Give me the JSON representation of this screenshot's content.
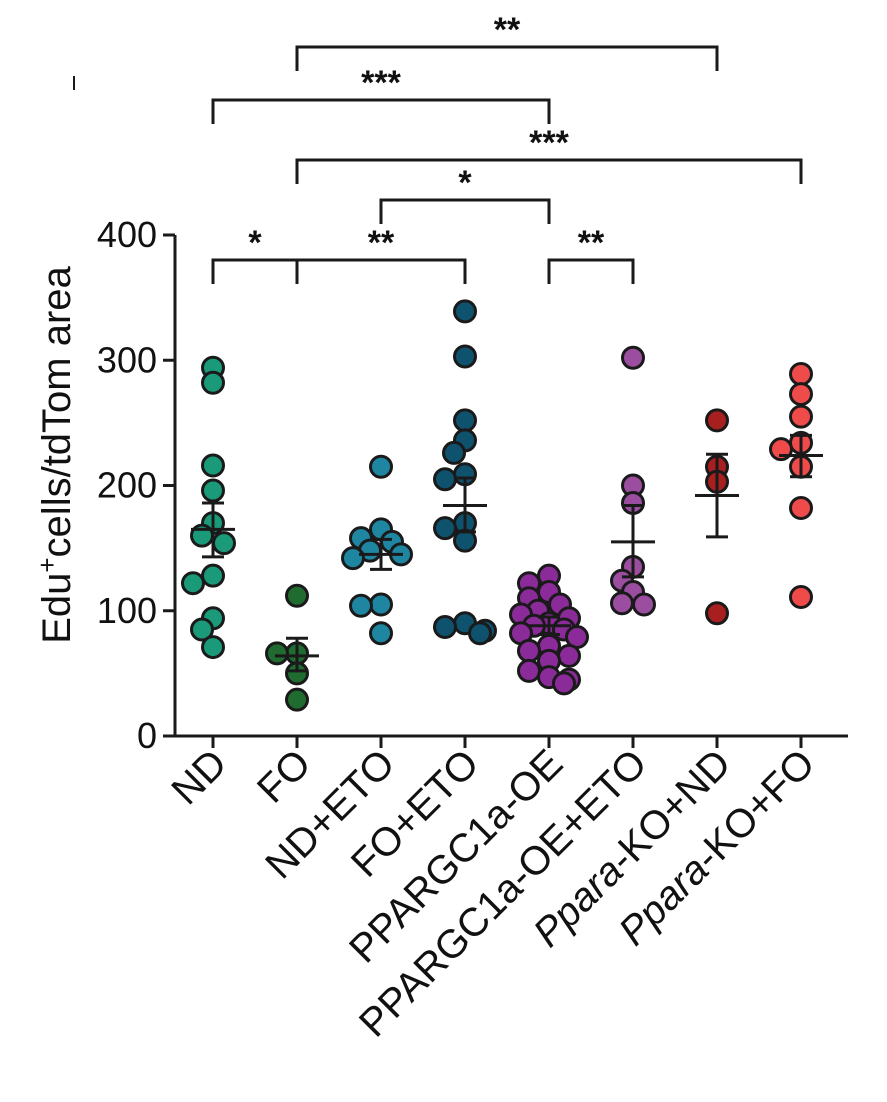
{
  "chart_data": {
    "type": "scatter",
    "ylabel": {
      "prefix": "Edu",
      "sup": "+",
      "suffix": "cells/tdTom area"
    },
    "ylim": [
      0,
      400
    ],
    "yticks": [
      0,
      100,
      200,
      300,
      400
    ],
    "categories": [
      {
        "label": "ND",
        "italic_prefix": "",
        "color": "#1a9a78",
        "mean": 165,
        "sem_low": 143,
        "sem_high": 186,
        "values": [
          294,
          282,
          216,
          196,
          170,
          160,
          154,
          128,
          122,
          94,
          85,
          71
        ]
      },
      {
        "label": "FO",
        "italic_prefix": "",
        "color": "#1f6b30",
        "mean": 64,
        "sem_low": 52,
        "sem_high": 78,
        "values": [
          112,
          66,
          66,
          50,
          29
        ]
      },
      {
        "label": "ND+ETO",
        "italic_prefix": "",
        "color": "#1f86a2",
        "mean": 145,
        "sem_low": 133,
        "sem_high": 157,
        "values": [
          215,
          165,
          158,
          155,
          148,
          145,
          142,
          105,
          104,
          82
        ]
      },
      {
        "label": "FO+ETO",
        "italic_prefix": "",
        "color": "#0f526e",
        "mean": 184,
        "sem_low": 163,
        "sem_high": 206,
        "values": [
          339,
          303,
          252,
          236,
          226,
          209,
          205,
          170,
          166,
          156,
          90,
          87,
          84,
          82
        ]
      },
      {
        "label": "PPARGC1a-OE",
        "italic_prefix": "",
        "color": "#8b2b9a",
        "mean": 88,
        "sem_low": 81,
        "sem_high": 95,
        "values": [
          128,
          122,
          115,
          110,
          105,
          100,
          97,
          94,
          90,
          88,
          85,
          82,
          79,
          72,
          68,
          64,
          60,
          52,
          47,
          45,
          42
        ]
      },
      {
        "label": "PPARGC1a-OE+ETO",
        "italic_prefix": "",
        "color": "#9b4e9f",
        "mean": 155,
        "sem_low": 127,
        "sem_high": 184,
        "values": [
          302,
          200,
          186,
          135,
          124,
          115,
          106,
          105
        ]
      },
      {
        "label": "-KO+ND",
        "italic_prefix": "Ppara",
        "color": "#a81f1f",
        "mean": 192,
        "sem_low": 159,
        "sem_high": 225,
        "values": [
          252,
          215,
          203,
          98
        ]
      },
      {
        "label": "-KO+FO",
        "italic_prefix": "Ppara",
        "color": "#ef4b4b",
        "mean": 224,
        "sem_low": 207,
        "sem_high": 240,
        "values": [
          289,
          273,
          255,
          234,
          229,
          215,
          182,
          111
        ]
      }
    ],
    "comparisons": [
      {
        "from": 1,
        "to": 6,
        "level": 0,
        "label": "**"
      },
      {
        "from": 0,
        "to": 4,
        "level": 1,
        "label": "***"
      },
      {
        "from": 1,
        "to": 7,
        "level": 2,
        "label": "***"
      },
      {
        "from": 2,
        "to": 4,
        "level": 3,
        "label": "*"
      },
      {
        "from": 0,
        "to": 1,
        "level": 4,
        "label": "*"
      },
      {
        "from": 1,
        "to": 3,
        "level": 4,
        "label": "**"
      },
      {
        "from": 4,
        "to": 5,
        "level": 4,
        "label": "**"
      }
    ]
  }
}
